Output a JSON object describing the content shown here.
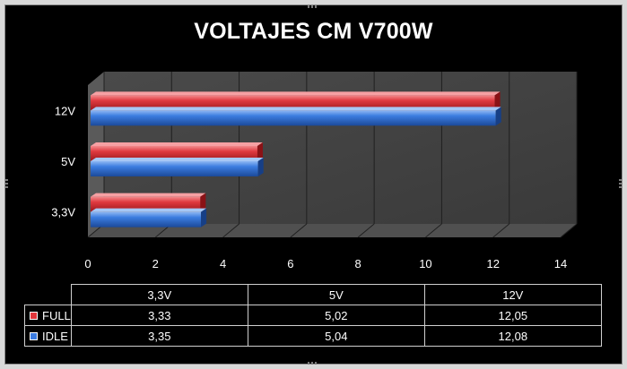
{
  "chart_data": {
    "type": "bar",
    "orientation": "horizontal",
    "title": "VOLTAJES CM V700W",
    "categories": [
      "3,3V",
      "5V",
      "12V"
    ],
    "series": [
      {
        "name": "FULL",
        "values": [
          3.33,
          5.02,
          12.05
        ],
        "color": "#e0363b"
      },
      {
        "name": "IDLE",
        "values": [
          3.35,
          5.04,
          12.08
        ],
        "color": "#3b7be0"
      }
    ],
    "xlim": [
      0,
      14
    ],
    "xticks": [
      "0",
      "2",
      "4",
      "6",
      "8",
      "10",
      "12",
      "14"
    ],
    "grid": true,
    "data_table": {
      "columns": [
        "3,3V",
        "5V",
        "12V"
      ],
      "rows": [
        {
          "label": "FULL",
          "cells": [
            "3,33",
            "5,02",
            "12,05"
          ]
        },
        {
          "label": "IDLE",
          "cells": [
            "3,35",
            "5,04",
            "12,08"
          ]
        }
      ]
    }
  }
}
